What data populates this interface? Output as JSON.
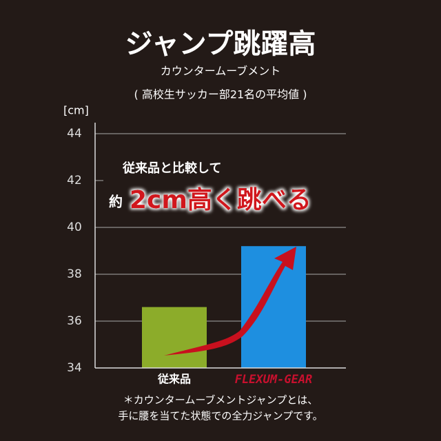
{
  "chart_data": {
    "type": "bar",
    "title": "ジャンプ跳躍高",
    "subtitle": "カウンタームーブメント",
    "note": "( 高校生サッカー部21名の平均値 )",
    "y_unit": "[cm]",
    "categories": [
      "従来品",
      "FLEXUM-GEAR"
    ],
    "values": [
      36.6,
      39.2
    ],
    "colors": [
      "#8cac2a",
      "#1e8fe0"
    ],
    "ylim": [
      34,
      44.5
    ],
    "yticks": [
      34,
      36,
      38,
      40,
      42,
      44
    ],
    "grid": true,
    "annotations": [
      "従来品と比較して",
      "約",
      "2cm高く跳べる"
    ],
    "footnote": [
      "＊カウンタームーブメントジャンプとは、",
      "手に腰を当てた状態での全力ジャンプです。"
    ]
  }
}
